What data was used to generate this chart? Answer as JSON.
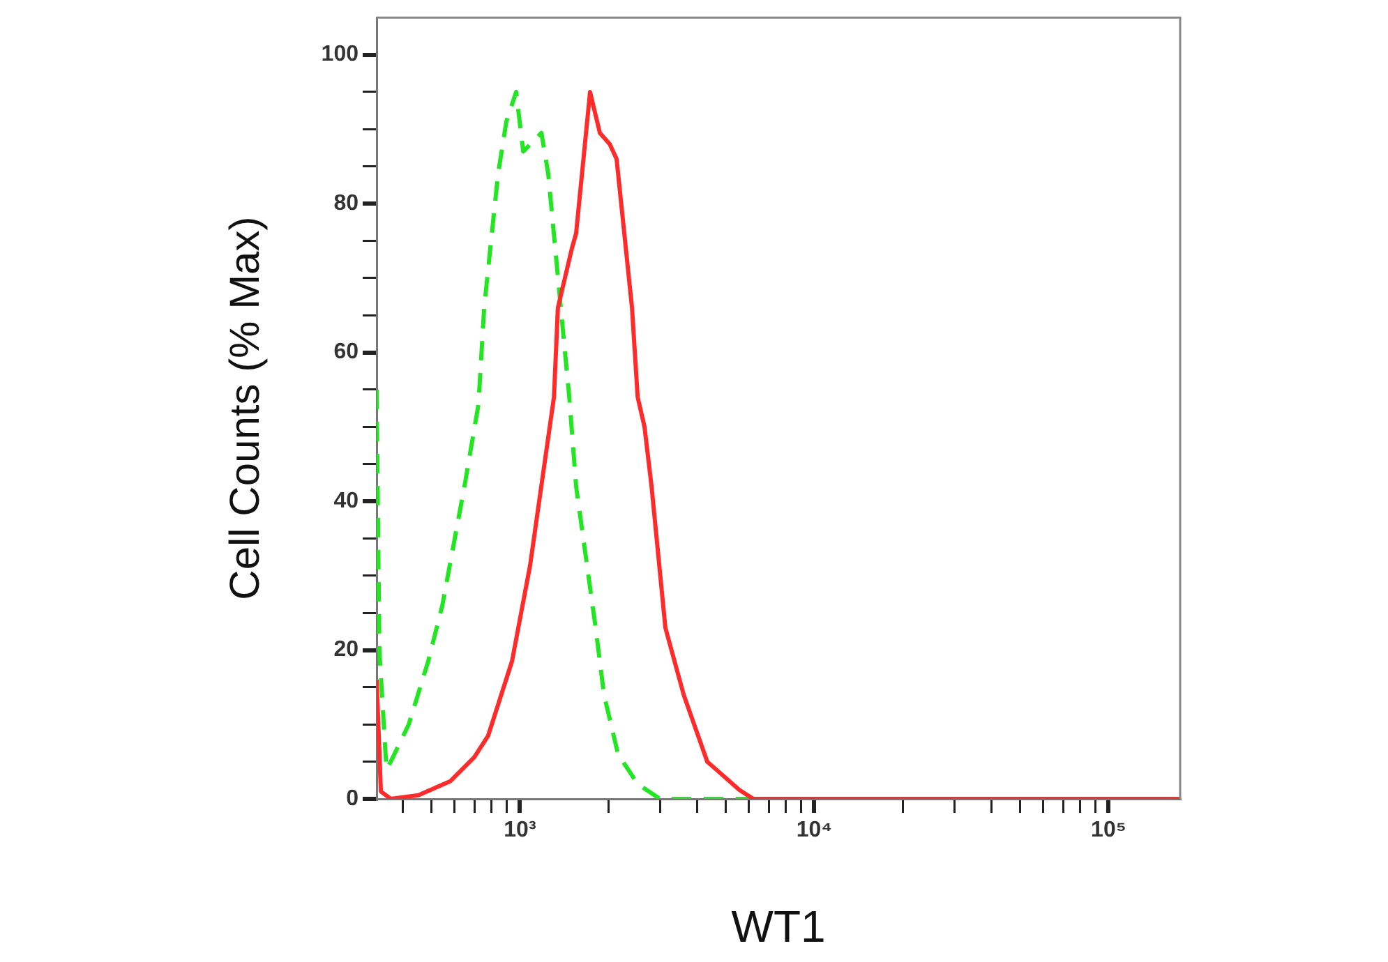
{
  "chart_data": {
    "type": "line",
    "xlabel": "WT1",
    "ylabel": "Cell Counts (% Max)",
    "log": "x",
    "marker": "none",
    "legend": false,
    "xlim": [
      326,
      175000
    ],
    "ylim": [
      0,
      105
    ],
    "xticks": [
      {
        "value": 400,
        "label": null
      },
      {
        "value": 500,
        "label": null
      },
      {
        "value": 600,
        "label": null
      },
      {
        "value": 700,
        "label": null
      },
      {
        "value": 800,
        "label": null
      },
      {
        "value": 900,
        "label": null
      },
      {
        "value": 1000,
        "label": "10³"
      },
      {
        "value": 2000,
        "label": null
      },
      {
        "value": 3000,
        "label": null
      },
      {
        "value": 4000,
        "label": null
      },
      {
        "value": 5000,
        "label": null
      },
      {
        "value": 6000,
        "label": null
      },
      {
        "value": 7000,
        "label": null
      },
      {
        "value": 8000,
        "label": null
      },
      {
        "value": 9000,
        "label": null
      },
      {
        "value": 10000,
        "label": "10⁴"
      },
      {
        "value": 20000,
        "label": null
      },
      {
        "value": 30000,
        "label": null
      },
      {
        "value": 40000,
        "label": null
      },
      {
        "value": 50000,
        "label": null
      },
      {
        "value": 60000,
        "label": null
      },
      {
        "value": 70000,
        "label": null
      },
      {
        "value": 80000,
        "label": null
      },
      {
        "value": 90000,
        "label": null
      },
      {
        "value": 100000,
        "label": "10⁵"
      }
    ],
    "yticks": [
      0,
      {
        "value": 5,
        "label": null
      },
      {
        "value": 10,
        "label": null
      },
      {
        "value": 15,
        "label": null
      },
      20,
      {
        "value": 25,
        "label": null
      },
      {
        "value": 30,
        "label": null
      },
      {
        "value": 35,
        "label": null
      },
      40,
      {
        "value": 45,
        "label": null
      },
      {
        "value": 50,
        "label": null
      },
      {
        "value": 55,
        "label": null
      },
      60,
      {
        "value": 65,
        "label": null
      },
      {
        "value": 70,
        "label": null
      },
      {
        "value": 75,
        "label": null
      },
      80,
      {
        "value": 85,
        "label": null
      },
      {
        "value": 90,
        "label": null
      },
      {
        "value": 95,
        "label": null
      },
      100
    ],
    "series": [
      {
        "color": "#ff2a2a",
        "line_style": "solid",
        "x": [
          326,
          337,
          364,
          452,
          581,
          700,
          780,
          940,
          1083,
          1305,
          1346,
          1502,
          1552,
          1731,
          1869,
          2019,
          2130,
          2403,
          2512,
          2650,
          2800,
          3120,
          3600,
          4330,
          5570,
          6210,
          175000
        ],
        "values": [
          16,
          1,
          0,
          0.5,
          2.4,
          5.6,
          8.5,
          18.5,
          31.4,
          54,
          66,
          74,
          76,
          95,
          89.5,
          88,
          86,
          66,
          54,
          50,
          42,
          23,
          14,
          5,
          1.2,
          0,
          0
        ]
      },
      {
        "color": "#22e622",
        "line_style": "dashed",
        "x": [
          326,
          333,
          352,
          364,
          419,
          488,
          545,
          648,
          723,
          756,
          798,
          843,
          899,
          971,
          1026,
          1183,
          1248,
          1318,
          1392,
          1471,
          1552,
          1675,
          1808,
          1930,
          2155,
          2512,
          2990,
          175000
        ],
        "values": [
          55,
          20,
          4,
          5,
          10,
          18.5,
          26,
          42,
          53,
          66,
          75,
          84,
          91,
          95,
          87,
          89.5,
          84,
          74,
          64,
          54,
          42,
          32.5,
          23,
          14,
          6,
          2,
          0,
          0
        ]
      }
    ]
  }
}
